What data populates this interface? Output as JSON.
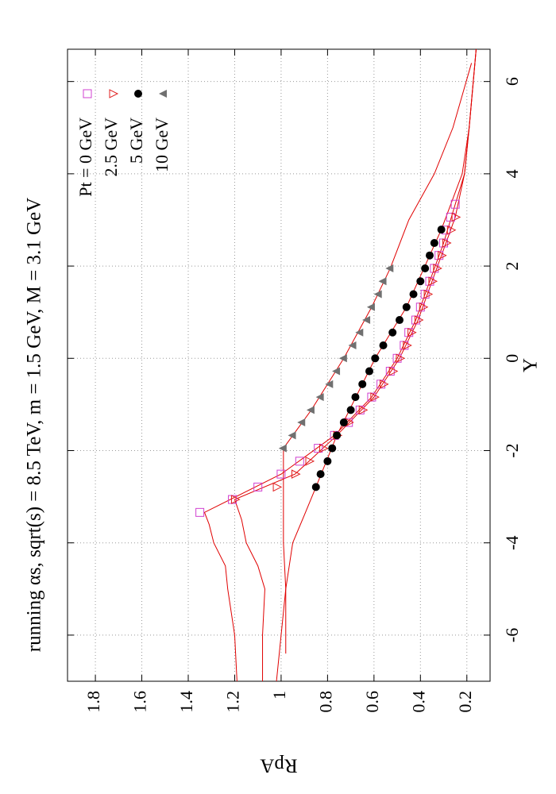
{
  "chart_data": {
    "type": "scatter",
    "title": "running αs, sqrt(s) = 8.5 TeV, m = 1.5 GeV, M = 3.1 GeV",
    "x_label": "Y",
    "y_label": "RpA",
    "xlim": [
      -7,
      6.7
    ],
    "xticks": [
      -6,
      -4,
      -2,
      0,
      2,
      4,
      6
    ],
    "ylim": [
      0.1,
      1.92
    ],
    "yticks": [
      0.2,
      0.4,
      0.6,
      0.8,
      1,
      1.2,
      1.4,
      1.6,
      1.8
    ],
    "grid": true,
    "legend": "top-right",
    "curve_color": "#e00000",
    "series": [
      {
        "name": "Pt = 0 GeV",
        "marker": "open-square",
        "color": "#d040d0",
        "x": [
          -3.34,
          -3.06,
          -2.79,
          -2.51,
          -2.23,
          -1.95,
          -1.67,
          -1.39,
          -1.12,
          -0.84,
          -0.56,
          -0.28,
          0,
          0.28,
          0.56,
          0.83,
          1.11,
          1.39,
          1.67,
          1.95,
          2.23,
          2.5,
          2.78,
          3.06,
          3.34
        ],
        "values": [
          1.35,
          1.21,
          1.1,
          1.0,
          0.92,
          0.84,
          0.77,
          0.71,
          0.66,
          0.61,
          0.57,
          0.53,
          0.5,
          0.47,
          0.45,
          0.42,
          0.4,
          0.38,
          0.36,
          0.34,
          0.32,
          0.3,
          0.29,
          0.27,
          0.25
        ],
        "curve": {
          "x": [
            -7,
            -6,
            -5,
            -4.5,
            -4,
            -3.6,
            -3.34,
            -2.51,
            -1.67,
            -0.84,
            0,
            0.83,
            1.67,
            2.5,
            3.34,
            4,
            5,
            6.7
          ],
          "values": [
            1.19,
            1.2,
            1.23,
            1.24,
            1.29,
            1.31,
            1.33,
            1.0,
            0.77,
            0.61,
            0.5,
            0.42,
            0.36,
            0.3,
            0.25,
            0.21,
            0.19,
            0.16
          ]
        }
      },
      {
        "name": "2.5 GeV",
        "marker": "open-triangle",
        "color": "#e02020",
        "x": [
          -3.06,
          -2.79,
          -2.51,
          -2.23,
          -1.95,
          -1.67,
          -1.39,
          -1.12,
          -0.84,
          -0.56,
          -0.28,
          0,
          0.28,
          0.56,
          0.83,
          1.11,
          1.39,
          1.67,
          1.95,
          2.23,
          2.5,
          2.78,
          3.06
        ],
        "values": [
          1.2,
          1.02,
          0.94,
          0.88,
          0.82,
          0.76,
          0.71,
          0.65,
          0.6,
          0.56,
          0.52,
          0.49,
          0.46,
          0.44,
          0.41,
          0.39,
          0.37,
          0.35,
          0.33,
          0.31,
          0.29,
          0.27,
          0.25
        ],
        "curve": {
          "x": [
            -7,
            -6,
            -5,
            -4.5,
            -4,
            -3.5,
            -3.06,
            -2.51,
            -1.67,
            -0.84,
            0,
            0.83,
            1.67,
            2.5,
            3.06,
            4,
            5,
            6.7
          ],
          "values": [
            1.08,
            1.08,
            1.07,
            1.1,
            1.15,
            1.17,
            1.2,
            0.94,
            0.76,
            0.6,
            0.49,
            0.41,
            0.35,
            0.29,
            0.25,
            0.21,
            0.19,
            0.16
          ]
        }
      },
      {
        "name": "5 GeV",
        "marker": "filled-circle",
        "color": "#000000",
        "x": [
          -2.79,
          -2.51,
          -2.23,
          -1.95,
          -1.67,
          -1.39,
          -1.12,
          -0.84,
          -0.56,
          -0.28,
          0,
          0.28,
          0.56,
          0.83,
          1.11,
          1.39,
          1.67,
          1.95,
          2.23,
          2.5,
          2.79
        ],
        "values": [
          0.85,
          0.83,
          0.8,
          0.78,
          0.76,
          0.73,
          0.7,
          0.68,
          0.65,
          0.62,
          0.595,
          0.56,
          0.52,
          0.49,
          0.46,
          0.43,
          0.4,
          0.38,
          0.36,
          0.34,
          0.31
        ],
        "curve": {
          "x": [
            -7,
            -6,
            -5,
            -4,
            -3.4,
            -2.79,
            -1.67,
            0,
            1.11,
            2.23,
            2.79,
            4,
            5,
            6.7
          ],
          "values": [
            1.02,
            1.0,
            0.98,
            0.95,
            0.9,
            0.85,
            0.76,
            0.595,
            0.46,
            0.36,
            0.31,
            0.22,
            0.19,
            0.16
          ]
        }
      },
      {
        "name": "10 GeV",
        "marker": "filled-triangle",
        "color": "#707070",
        "x": [
          -1.95,
          -1.67,
          -1.39,
          -1.12,
          -0.84,
          -0.56,
          -0.28,
          0,
          0.28,
          0.56,
          0.83,
          1.11,
          1.39,
          1.67,
          1.95
        ],
        "values": [
          0.99,
          0.95,
          0.91,
          0.87,
          0.83,
          0.79,
          0.76,
          0.73,
          0.69,
          0.66,
          0.63,
          0.61,
          0.58,
          0.56,
          0.53
        ],
        "curve": {
          "x": [
            -6.4,
            -5,
            -4,
            -3,
            -1.95,
            -1.12,
            0,
            1.11,
            1.95,
            3,
            4,
            5,
            6.4
          ],
          "values": [
            0.98,
            0.98,
            0.99,
            0.99,
            0.99,
            0.87,
            0.73,
            0.61,
            0.53,
            0.45,
            0.34,
            0.26,
            0.18
          ]
        }
      }
    ]
  }
}
